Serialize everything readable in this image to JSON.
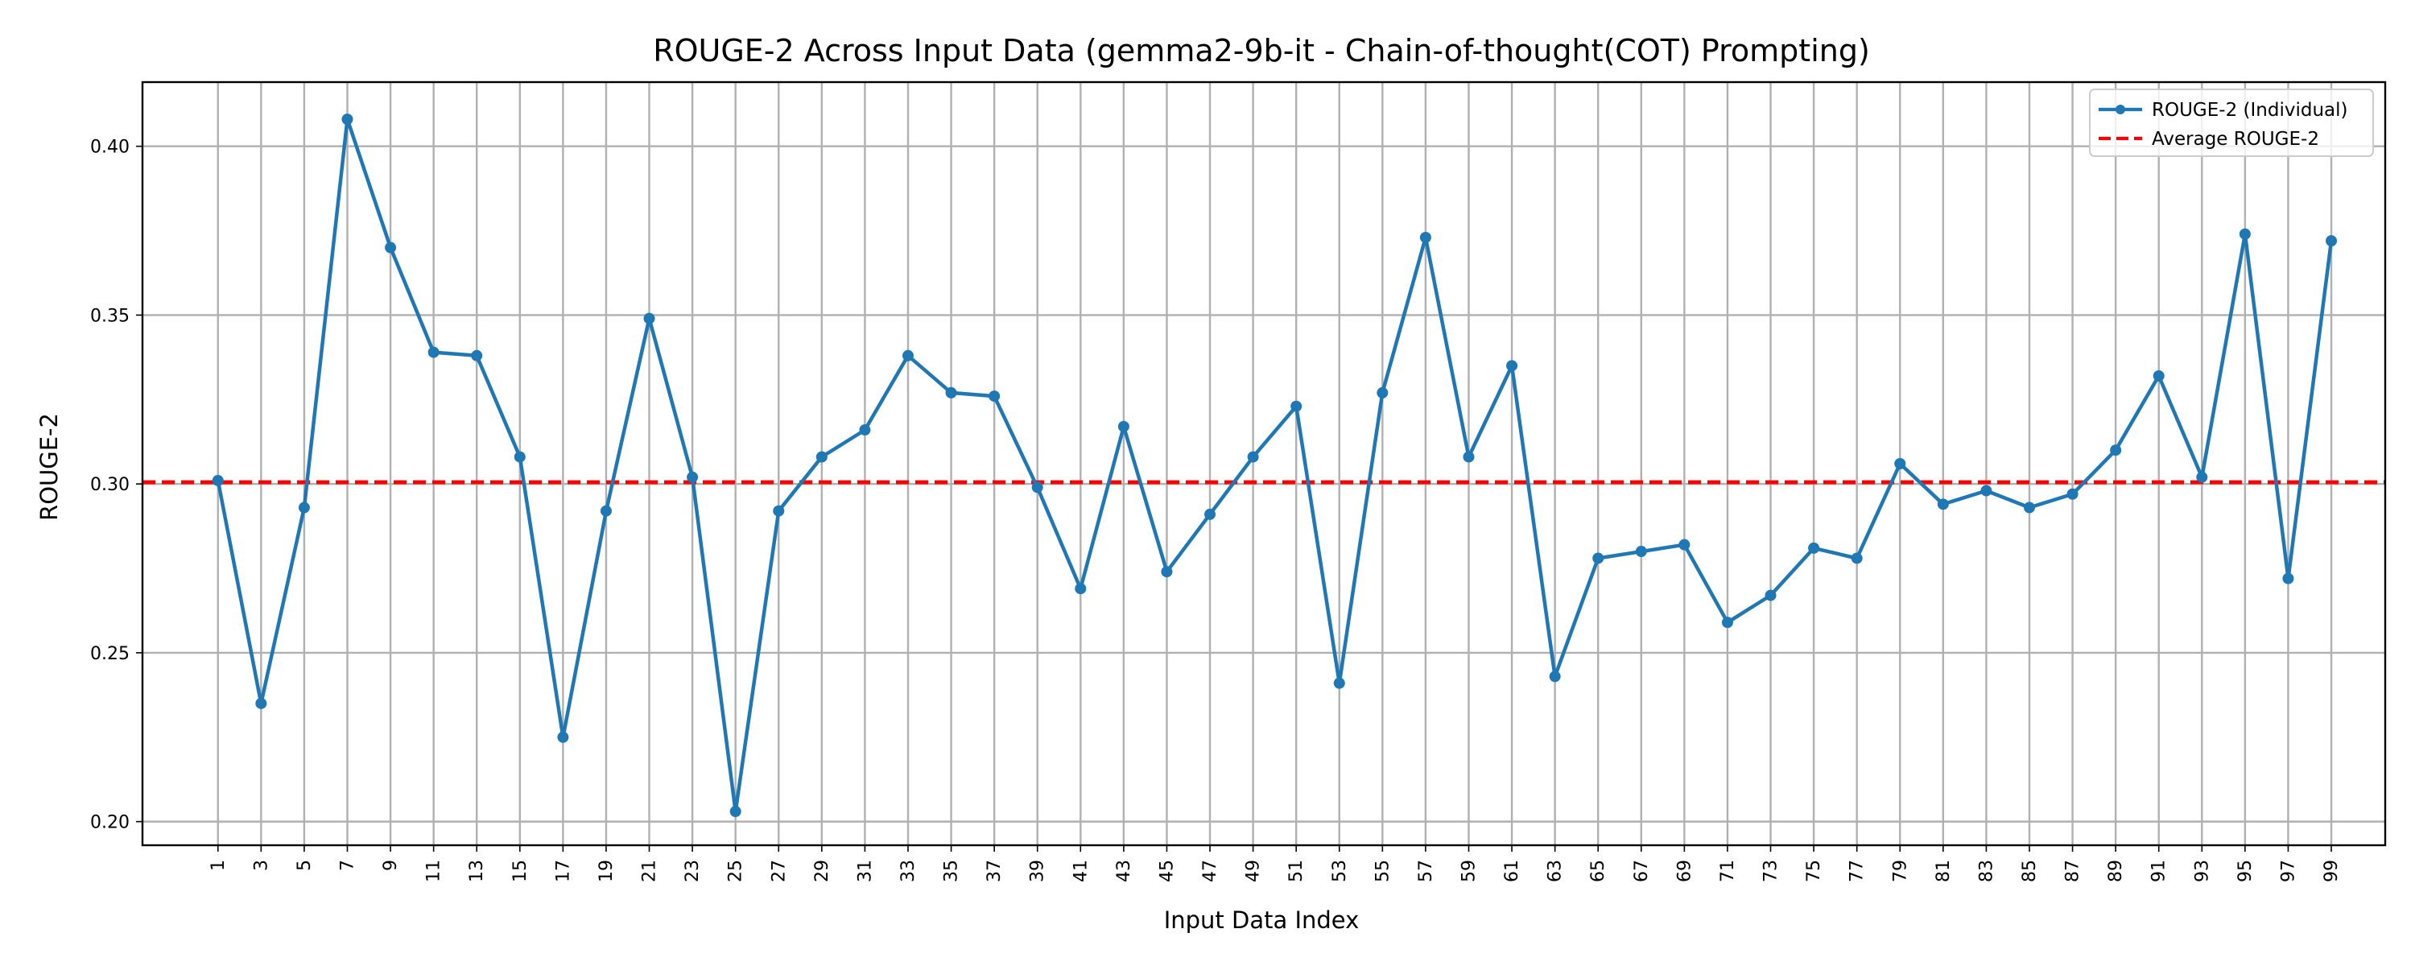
{
  "chart_data": {
    "type": "line",
    "title": "ROUGE-2 Across Input Data (gemma2-9b-it - Chain-of-thought(COT) Prompting)",
    "xlabel": "Input Data Index",
    "ylabel": "ROUGE-2",
    "xlim": [
      -2.5,
      101.5
    ],
    "ylim": [
      0.193,
      0.419
    ],
    "x_ticks": [
      1,
      3,
      5,
      7,
      9,
      11,
      13,
      15,
      17,
      19,
      21,
      23,
      25,
      27,
      29,
      31,
      33,
      35,
      37,
      39,
      41,
      43,
      45,
      47,
      49,
      51,
      53,
      55,
      57,
      59,
      61,
      63,
      65,
      67,
      69,
      71,
      73,
      75,
      77,
      79,
      81,
      83,
      85,
      87,
      89,
      91,
      93,
      95,
      97,
      99
    ],
    "y_ticks": [
      0.2,
      0.25,
      0.3,
      0.35,
      0.4
    ],
    "y_tick_labels": [
      "0.20",
      "0.25",
      "0.30",
      "0.35",
      "0.40"
    ],
    "grid": true,
    "legend_position": "top-right",
    "series": [
      {
        "name": "ROUGE-2 (Individual)",
        "color": "#1f77b4",
        "marker": "circle",
        "x": [
          1,
          3,
          5,
          7,
          9,
          11,
          13,
          15,
          17,
          19,
          21,
          23,
          25,
          27,
          29,
          31,
          33,
          35,
          37,
          39,
          41,
          43,
          45,
          47,
          49,
          51,
          53,
          55,
          57,
          59,
          61,
          63,
          65,
          67,
          69,
          71,
          73,
          75,
          77,
          79,
          81,
          83,
          85,
          87,
          89,
          91,
          93,
          95,
          97,
          99
        ],
        "y": [
          0.301,
          0.235,
          0.293,
          0.408,
          0.37,
          0.339,
          0.338,
          0.308,
          0.225,
          0.292,
          0.349,
          0.302,
          0.203,
          0.292,
          0.308,
          0.316,
          0.338,
          0.327,
          0.326,
          0.299,
          0.269,
          0.317,
          0.274,
          0.291,
          0.308,
          0.323,
          0.241,
          0.327,
          0.373,
          0.308,
          0.335,
          0.243,
          0.278,
          0.28,
          0.282,
          0.259,
          0.267,
          0.281,
          0.278,
          0.306,
          0.294,
          0.298,
          0.293,
          0.297,
          0.31,
          0.332,
          0.302,
          0.374,
          0.272,
          0.372
        ]
      },
      {
        "name": "Average ROUGE-2",
        "color": "#ff0000",
        "style": "dashed",
        "value": 0.3005
      }
    ]
  }
}
